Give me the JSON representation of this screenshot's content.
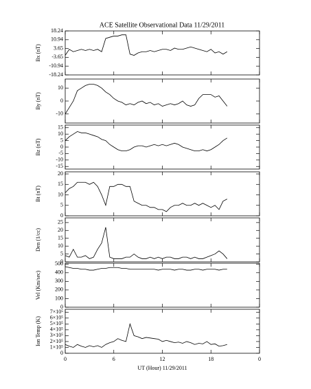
{
  "chart_data": [
    {
      "type": "line",
      "title": "ACE Satellite Observational Data   11/29/2011",
      "ylabel": "Bx (nT)",
      "color": "#000000",
      "x": [
        0,
        0.5,
        1,
        1.5,
        2,
        2.5,
        3,
        3.5,
        4,
        4.5,
        5,
        5.5,
        6,
        6.5,
        7,
        7.5,
        8,
        8.5,
        9,
        9.5,
        10,
        10.5,
        11,
        11.5,
        12,
        12.5,
        13,
        13.5,
        14,
        14.5,
        15,
        15.5,
        16,
        16.5,
        17,
        17.5,
        18,
        18.5,
        19,
        19.5,
        20
      ],
      "values": [
        -2,
        3,
        1,
        2,
        3,
        2,
        3,
        2,
        3,
        1,
        12,
        13,
        14,
        14,
        15,
        15,
        -1,
        -2,
        0,
        1,
        1,
        2,
        1,
        2,
        3,
        3,
        2,
        4,
        3,
        3,
        4,
        5,
        4,
        3,
        2,
        1,
        3,
        0,
        1,
        -1,
        1
      ],
      "xlim": [
        0,
        24
      ],
      "xticks": [
        0,
        6,
        12,
        18,
        24
      ],
      "ylim": [
        -18.24,
        18.24
      ],
      "yticks": [
        18.24,
        10.94,
        3.65,
        -3.65,
        -10.94,
        -18.24
      ]
    },
    {
      "type": "line",
      "ylabel": "By (nT)",
      "color": "#000000",
      "x": [
        0,
        0.5,
        1,
        1.5,
        2,
        2.5,
        3,
        3.5,
        4,
        4.5,
        5,
        5.5,
        6,
        6.5,
        7,
        7.5,
        8,
        8.5,
        9,
        9.5,
        10,
        10.5,
        11,
        11.5,
        12,
        12.5,
        13,
        13.5,
        14,
        14.5,
        15,
        15.5,
        16,
        16.5,
        17,
        17.5,
        18,
        18.5,
        19,
        19.5,
        20
      ],
      "values": [
        -10,
        -5,
        0,
        8,
        10,
        12,
        13,
        13,
        12,
        10,
        7,
        5,
        2,
        0,
        -1,
        -3,
        -2,
        -3,
        -1,
        0,
        -2,
        -1,
        -3,
        -2,
        -4,
        -3,
        -2,
        -3,
        -2,
        0,
        -3,
        -4,
        -3,
        2,
        5,
        5,
        5,
        3,
        4,
        0,
        -4
      ],
      "xlim": [
        0,
        24
      ],
      "xticks": [
        0,
        6,
        12,
        18,
        24
      ],
      "ylim": [
        -17,
        17
      ],
      "yticks": [
        10,
        0,
        -10
      ]
    },
    {
      "type": "line",
      "ylabel": "Bz (nT)",
      "color": "#000000",
      "x": [
        0,
        0.5,
        1,
        1.5,
        2,
        2.5,
        3,
        3.5,
        4,
        4.5,
        5,
        5.5,
        6,
        6.5,
        7,
        7.5,
        8,
        8.5,
        9,
        9.5,
        10,
        10.5,
        11,
        11.5,
        12,
        12.5,
        13,
        13.5,
        14,
        14.5,
        15,
        15.5,
        16,
        16.5,
        17,
        17.5,
        18,
        18.5,
        19,
        19.5,
        20
      ],
      "values": [
        5,
        8,
        10,
        12,
        11,
        11,
        10,
        9,
        8,
        6,
        5,
        2,
        0,
        -2,
        -3,
        -3,
        -2,
        0,
        1,
        1,
        0,
        1,
        2,
        1,
        2,
        1,
        2,
        3,
        2,
        0,
        -1,
        -2,
        -3,
        -3,
        -2,
        -3,
        -2,
        0,
        2,
        5,
        7
      ],
      "xlim": [
        0,
        24
      ],
      "xticks": [
        0,
        6,
        12,
        18,
        24
      ],
      "ylim": [
        -17,
        17
      ],
      "yticks": [
        15,
        10,
        5,
        0,
        -5,
        -10,
        -15
      ]
    },
    {
      "type": "line",
      "ylabel": "Bt (nT)",
      "color": "#000000",
      "x": [
        0,
        0.5,
        1,
        1.5,
        2,
        2.5,
        3,
        3.5,
        4,
        4.5,
        5,
        5.5,
        6,
        6.5,
        7,
        7.5,
        8,
        8.5,
        9,
        9.5,
        10,
        10.5,
        11,
        11.5,
        12,
        12.5,
        13,
        13.5,
        14,
        14.5,
        15,
        15.5,
        16,
        16.5,
        17,
        17.5,
        18,
        18.5,
        19,
        19.5,
        20
      ],
      "values": [
        11,
        13,
        14,
        16,
        16,
        16,
        15,
        16,
        14,
        10,
        5,
        14,
        14,
        15,
        15,
        14,
        14,
        7,
        6,
        5,
        5,
        4,
        4,
        3,
        3,
        2,
        4,
        5,
        5,
        6,
        5,
        5,
        6,
        5,
        6,
        5,
        4,
        5,
        3,
        7,
        8
      ],
      "xlim": [
        0,
        24
      ],
      "xticks": [
        0,
        6,
        12,
        18,
        24
      ],
      "ylim": [
        0,
        21
      ],
      "yticks": [
        0,
        5,
        10,
        15,
        20
      ]
    },
    {
      "type": "line",
      "ylabel": "Den (1/cc)",
      "color": "#000000",
      "x": [
        0,
        0.5,
        1,
        1.5,
        2,
        2.5,
        3,
        3.5,
        4,
        4.5,
        5,
        5.5,
        6,
        6.5,
        7,
        7.5,
        8,
        8.5,
        9,
        9.5,
        10,
        10.5,
        11,
        11.5,
        12,
        12.5,
        13,
        13.5,
        14,
        14.5,
        15,
        15.5,
        16,
        16.5,
        17,
        17.5,
        18,
        18.5,
        19,
        19.5,
        20
      ],
      "values": [
        4,
        3,
        8,
        3,
        3,
        4,
        2,
        3,
        8,
        12,
        22,
        3,
        2,
        2,
        2,
        3,
        3,
        5,
        3,
        2,
        2,
        3,
        2,
        3,
        2,
        3,
        3,
        2,
        2,
        3,
        3,
        2,
        3,
        2,
        2,
        3,
        4,
        5,
        7,
        5,
        2
      ],
      "xlim": [
        0,
        24
      ],
      "xticks": [
        0,
        6,
        12,
        18,
        24
      ],
      "ylim": [
        0,
        28
      ],
      "yticks": [
        0,
        5,
        10,
        15,
        20,
        25
      ]
    },
    {
      "type": "line",
      "ylabel": "Vel (Km/sec)",
      "color": "#000000",
      "x": [
        0,
        0.5,
        1,
        1.5,
        2,
        2.5,
        3,
        3.5,
        4,
        4.5,
        5,
        5.5,
        6,
        6.5,
        7,
        7.5,
        8,
        8.5,
        9,
        9.5,
        10,
        10.5,
        11,
        11.5,
        12,
        12.5,
        13,
        13.5,
        14,
        14.5,
        15,
        15.5,
        16,
        16.5,
        17,
        17.5,
        18,
        18.5,
        19,
        19.5,
        20
      ],
      "values": [
        470,
        460,
        450,
        450,
        440,
        440,
        430,
        430,
        440,
        450,
        450,
        460,
        460,
        460,
        450,
        450,
        440,
        440,
        440,
        440,
        440,
        440,
        440,
        430,
        440,
        440,
        440,
        430,
        440,
        440,
        430,
        430,
        440,
        440,
        430,
        440,
        440,
        440,
        430,
        440,
        440
      ],
      "xlim": [
        0,
        24
      ],
      "xticks": [
        0,
        6,
        12,
        18,
        24
      ],
      "ylim": [
        0,
        510
      ],
      "yticks": [
        0,
        100,
        200,
        300,
        400,
        500
      ]
    },
    {
      "type": "line",
      "ylabel": "Ion Temp (K)",
      "xlabel": "UT (Hour)  11/29/2011",
      "color": "#000000",
      "x": [
        0,
        0.5,
        1,
        1.5,
        2,
        2.5,
        3,
        3.5,
        4,
        4.5,
        5,
        5.5,
        6,
        6.5,
        7,
        7.5,
        8,
        8.5,
        9,
        9.5,
        10,
        10.5,
        11,
        11.5,
        12,
        12.5,
        13,
        13.5,
        14,
        14.5,
        15,
        15.5,
        16,
        16.5,
        17,
        17.5,
        18,
        18.5,
        19,
        19.5,
        20
      ],
      "values": [
        150000,
        120000,
        100000,
        150000,
        120000,
        100000,
        130000,
        110000,
        130000,
        100000,
        150000,
        180000,
        200000,
        250000,
        220000,
        200000,
        500000,
        300000,
        280000,
        250000,
        270000,
        260000,
        250000,
        240000,
        200000,
        220000,
        200000,
        180000,
        190000,
        170000,
        200000,
        180000,
        150000,
        170000,
        160000,
        200000,
        150000,
        160000,
        120000,
        130000,
        150000
      ],
      "xlim": [
        0,
        24
      ],
      "xticks": [
        0,
        6,
        12,
        {
          "value": 18,
          "label": "18"
        },
        {
          "value": 24,
          "label": "0"
        }
      ],
      "ylim": [
        0,
        750000
      ],
      "yticks": [
        0,
        {
          "value": 100000,
          "label": "1×10⁵"
        },
        {
          "value": 200000,
          "label": "2×10⁵"
        },
        {
          "value": 300000,
          "label": "3×10⁵"
        },
        {
          "value": 400000,
          "label": "4×10⁵"
        },
        {
          "value": 500000,
          "label": "5×10⁵"
        },
        {
          "value": 600000,
          "label": "6×10⁵"
        },
        {
          "value": 700000,
          "label": "7×10⁵"
        }
      ]
    }
  ]
}
